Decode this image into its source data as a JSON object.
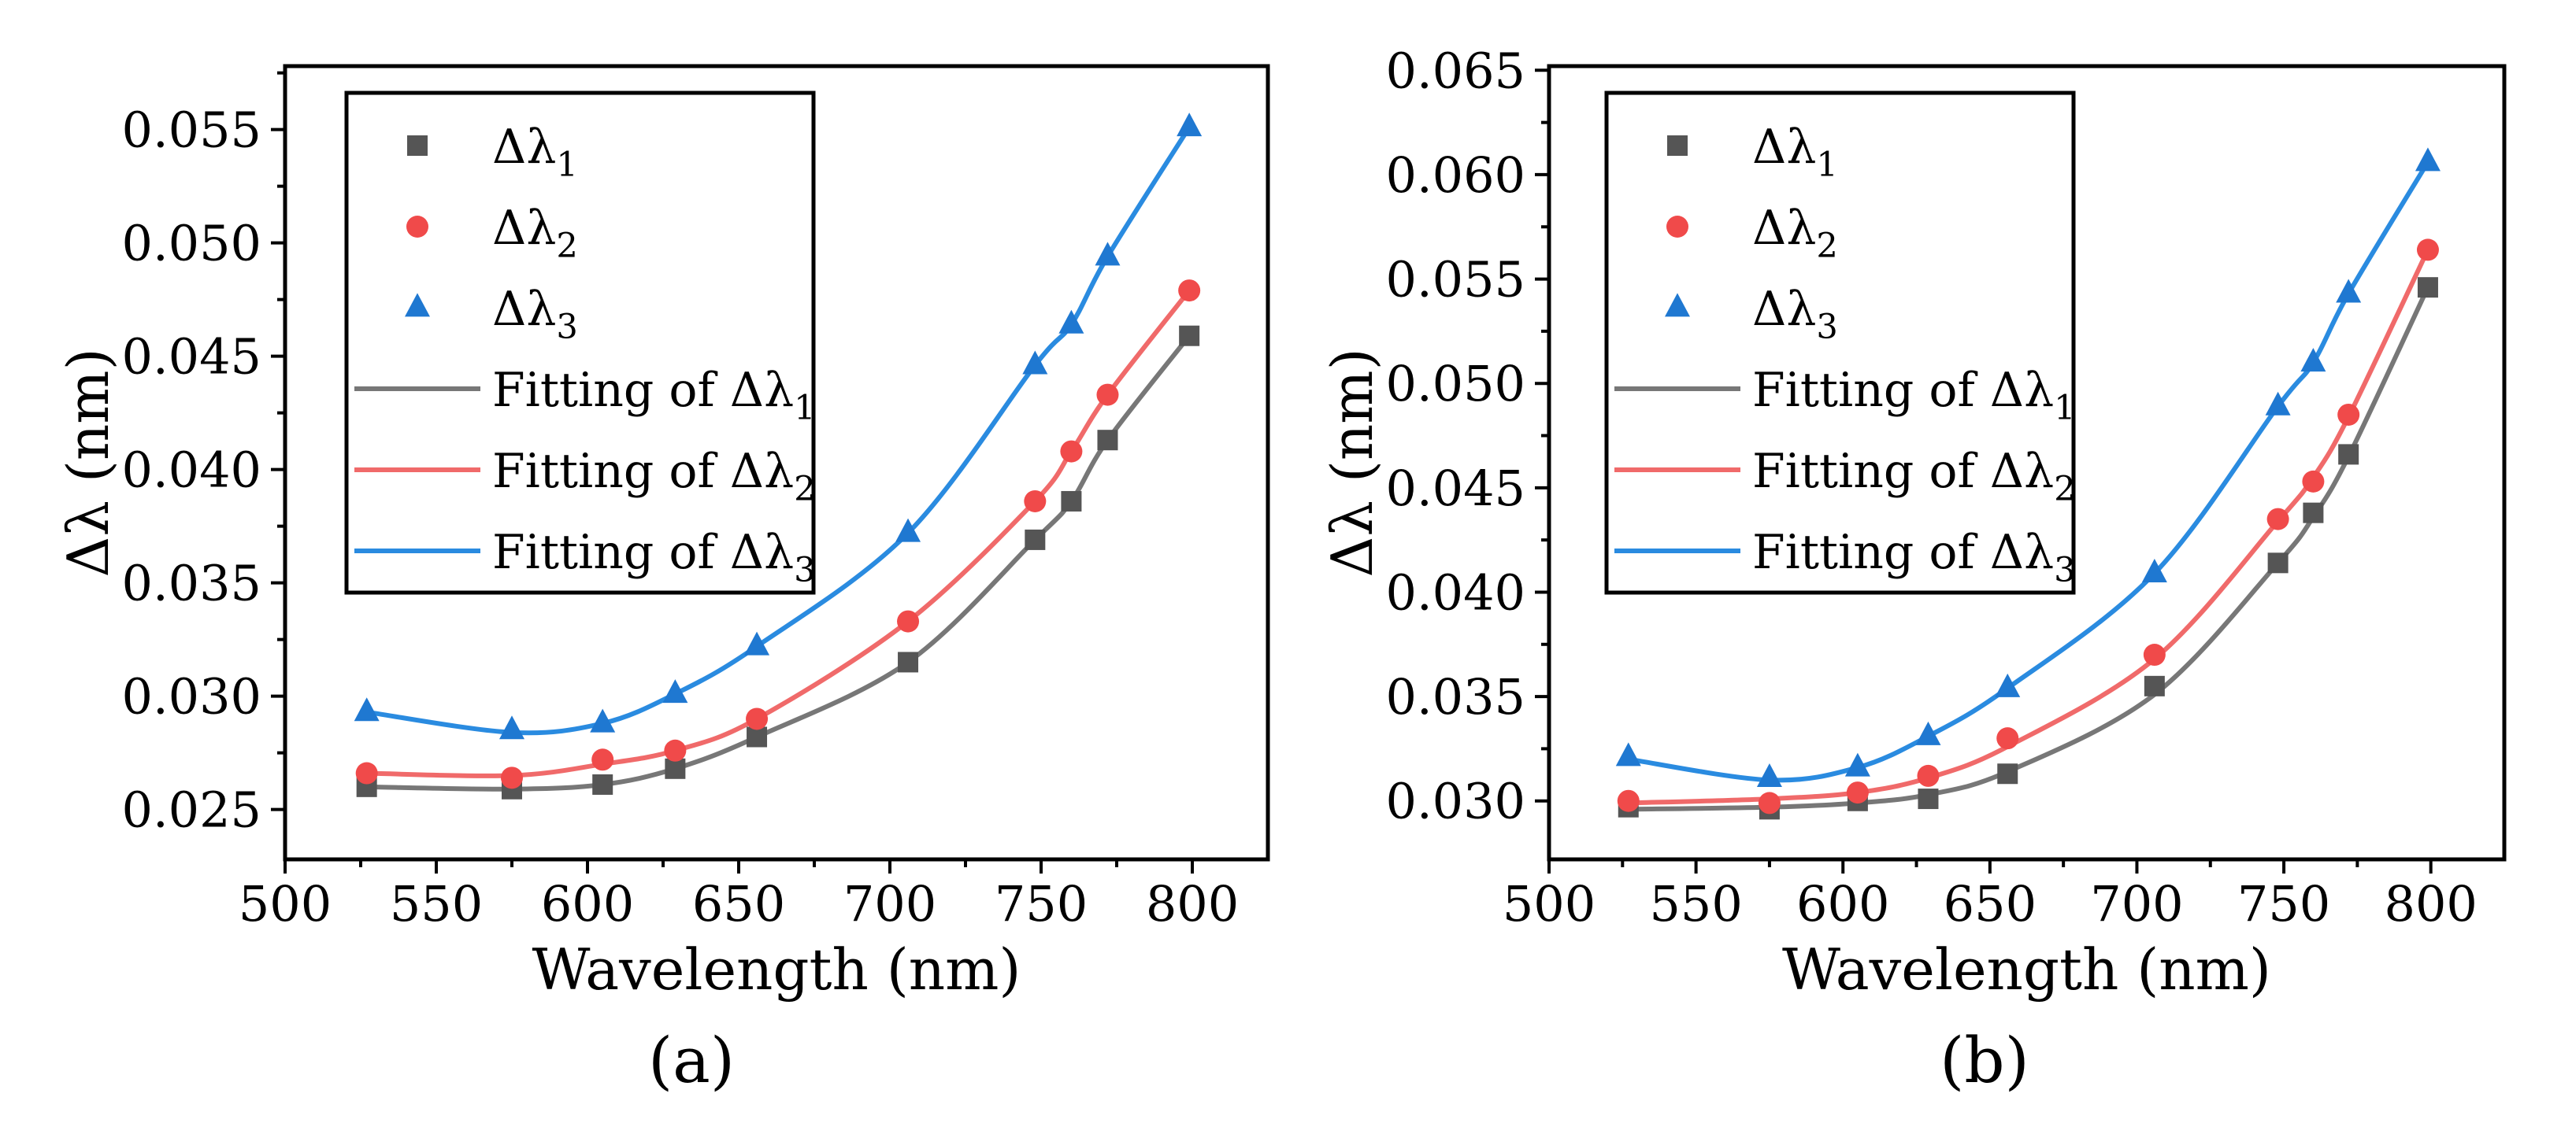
{
  "chart_data": [
    {
      "type": "scatter",
      "panel_label": "(a)",
      "xlabel": "Wavelength (nm)",
      "ylabel": "Δλ (nm)",
      "xlim": [
        500,
        825
      ],
      "ylim": [
        0.0228,
        0.0578
      ],
      "xticks": [
        500,
        550,
        600,
        650,
        700,
        750,
        800
      ],
      "xtick_labels": [
        "500",
        "550",
        "600",
        "650",
        "700",
        "750",
        "800"
      ],
      "yticks": [
        0.025,
        0.03,
        0.035,
        0.04,
        0.045,
        0.05,
        0.055
      ],
      "ytick_labels": [
        "0.025",
        "0.030",
        "0.035",
        "0.040",
        "0.045",
        "0.050",
        "0.055"
      ],
      "legend_position": "top-left",
      "grid": false,
      "x": [
        527,
        575,
        605,
        629,
        656,
        706,
        748,
        760,
        772,
        799
      ],
      "series": [
        {
          "name": "Δλ1",
          "marker": "square",
          "color": "#555555",
          "values": [
            0.026,
            0.0259,
            0.0261,
            0.0268,
            0.0282,
            0.0315,
            0.0369,
            0.0386,
            0.0413,
            0.0459
          ]
        },
        {
          "name": "Δλ2",
          "marker": "circle",
          "color": "#f04a4a",
          "values": [
            0.0266,
            0.0264,
            0.0272,
            0.0276,
            0.029,
            0.0333,
            0.0386,
            0.0408,
            0.0433,
            0.0479
          ]
        },
        {
          "name": "Δλ3",
          "marker": "triangle",
          "color": "#1f78d1",
          "values": [
            0.0293,
            0.0285,
            0.0288,
            0.0301,
            0.0322,
            0.0372,
            0.0446,
            0.0464,
            0.0494,
            0.0551
          ]
        }
      ],
      "fits": [
        {
          "name": "Fitting of Δλ1",
          "color": "#777777",
          "values": [
            0.026,
            0.0259,
            0.0261,
            0.0268,
            0.0282,
            0.0315,
            0.0369,
            0.0386,
            0.0413,
            0.0459
          ]
        },
        {
          "name": "Fitting of Δλ2",
          "color": "#f06a6a",
          "values": [
            0.0266,
            0.0265,
            0.027,
            0.0276,
            0.029,
            0.0333,
            0.0386,
            0.0408,
            0.0433,
            0.0479
          ]
        },
        {
          "name": "Fitting of Δλ3",
          "color": "#2a8be0",
          "values": [
            0.0293,
            0.0284,
            0.0288,
            0.0301,
            0.0322,
            0.0372,
            0.0446,
            0.0464,
            0.0494,
            0.0551
          ]
        }
      ]
    },
    {
      "type": "scatter",
      "panel_label": "(b)",
      "xlabel": "Wavelength (nm)",
      "ylabel": "Δλ (nm)",
      "xlim": [
        500,
        825
      ],
      "ylim": [
        0.0272,
        0.0652
      ],
      "xticks": [
        500,
        550,
        600,
        650,
        700,
        750,
        800
      ],
      "xtick_labels": [
        "500",
        "550",
        "600",
        "650",
        "700",
        "750",
        "800"
      ],
      "yticks": [
        0.03,
        0.035,
        0.04,
        0.045,
        0.05,
        0.055,
        0.06,
        0.065
      ],
      "ytick_labels": [
        "0.030",
        "0.035",
        "0.040",
        "0.045",
        "0.050",
        "0.055",
        "0.060",
        "0.065"
      ],
      "legend_position": "top-left",
      "grid": false,
      "x": [
        527,
        575,
        605,
        629,
        656,
        706,
        748,
        760,
        772,
        799
      ],
      "series": [
        {
          "name": "Δλ1",
          "marker": "square",
          "color": "#555555",
          "values": [
            0.0297,
            0.0296,
            0.03,
            0.0301,
            0.0313,
            0.0355,
            0.0414,
            0.0438,
            0.0466,
            0.0546
          ]
        },
        {
          "name": "Δλ2",
          "marker": "circle",
          "color": "#f04a4a",
          "values": [
            0.03,
            0.0299,
            0.0304,
            0.0312,
            0.033,
            0.037,
            0.0435,
            0.0453,
            0.0485,
            0.0564
          ]
        },
        {
          "name": "Δλ3",
          "marker": "triangle",
          "color": "#1f78d1",
          "values": [
            0.0321,
            0.0311,
            0.0316,
            0.0331,
            0.0354,
            0.0409,
            0.0489,
            0.051,
            0.0543,
            0.0606
          ]
        }
      ],
      "fits": [
        {
          "name": "Fitting of Δλ1",
          "color": "#777777",
          "values": [
            0.0296,
            0.0297,
            0.0299,
            0.0303,
            0.0314,
            0.0351,
            0.0414,
            0.0436,
            0.0465,
            0.0546
          ]
        },
        {
          "name": "Fitting of Δλ2",
          "color": "#f06a6a",
          "values": [
            0.0299,
            0.0301,
            0.0304,
            0.0311,
            0.0326,
            0.0368,
            0.0434,
            0.0455,
            0.0484,
            0.0564
          ]
        },
        {
          "name": "Fitting of Δλ3",
          "color": "#2a8be0",
          "values": [
            0.032,
            0.031,
            0.0316,
            0.0331,
            0.0354,
            0.0409,
            0.0489,
            0.051,
            0.0543,
            0.0606
          ]
        }
      ]
    }
  ]
}
